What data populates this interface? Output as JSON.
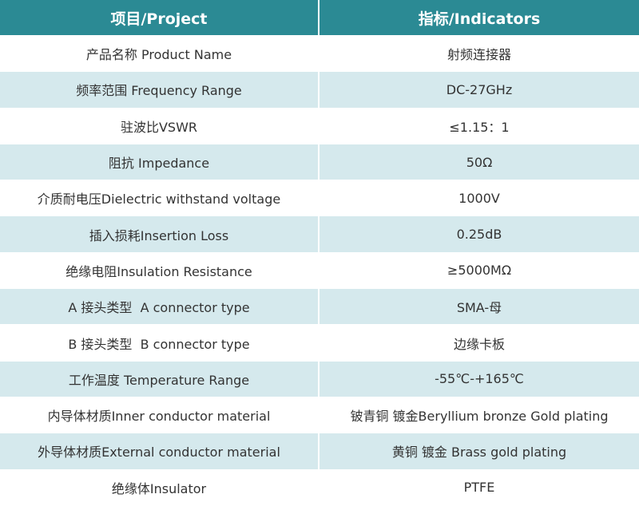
{
  "table": {
    "header": [
      "项目/Project",
      "指标/Indicators"
    ],
    "rows": [
      [
        "产品名称 Product Name",
        "射频连接器"
      ],
      [
        "频率范围 Frequency Range",
        "DC-27GHz"
      ],
      [
        "驻波比VSWR",
        "≤1.15：1"
      ],
      [
        "阻抗 Impedance",
        "50Ω"
      ],
      [
        "介质耐电压Dielectric withstand voltage",
        "1000V"
      ],
      [
        "插入损耗Insertion Loss",
        "0.25dB"
      ],
      [
        "绝缘电阻Insulation Resistance",
        "≥5000MΩ"
      ],
      [
        "A 接头类型  A connector type",
        "SMA-母"
      ],
      [
        "B 接头类型  B connector type",
        "边缘卡板"
      ],
      [
        "工作温度 Temperature Range",
        "-55℃-+165℃"
      ],
      [
        "内导体材质Inner conductor material",
        "铍青铜 镀金Beryllium bronze Gold plating"
      ],
      [
        "外导体材质External conductor material",
        "黄铜 镀金 Brass gold plating"
      ],
      [
        "绝缘体Insulator",
        "PTFE"
      ]
    ]
  }
}
